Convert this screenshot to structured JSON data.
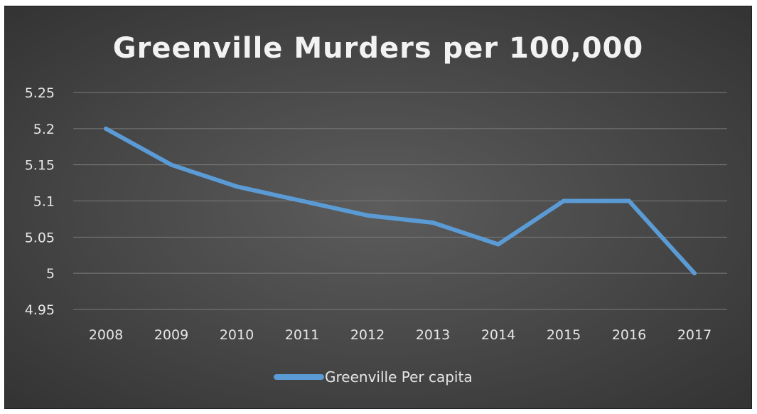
{
  "chart_data": {
    "type": "line",
    "title": "Greenville Murders per 100,000",
    "xlabel": "",
    "ylabel": "",
    "x": [
      "2008",
      "2009",
      "2010",
      "2011",
      "2012",
      "2013",
      "2014",
      "2015",
      "2016",
      "2017"
    ],
    "ylim": [
      4.95,
      5.25
    ],
    "yticks": [
      "4.95",
      "5",
      "5.05",
      "5.1",
      "5.15",
      "5.2",
      "5.25"
    ],
    "grid": true,
    "legend_position": "bottom",
    "series": [
      {
        "name": "Greenville Per capita",
        "color": "#5b9bd5",
        "values": [
          5.2,
          5.15,
          5.12,
          5.1,
          5.08,
          5.07,
          5.04,
          5.1,
          5.1,
          5.0
        ]
      }
    ]
  },
  "colors": {
    "background": "#4a4a4a",
    "text": "#e6e6e6",
    "gridline": "#7a7a7a"
  }
}
